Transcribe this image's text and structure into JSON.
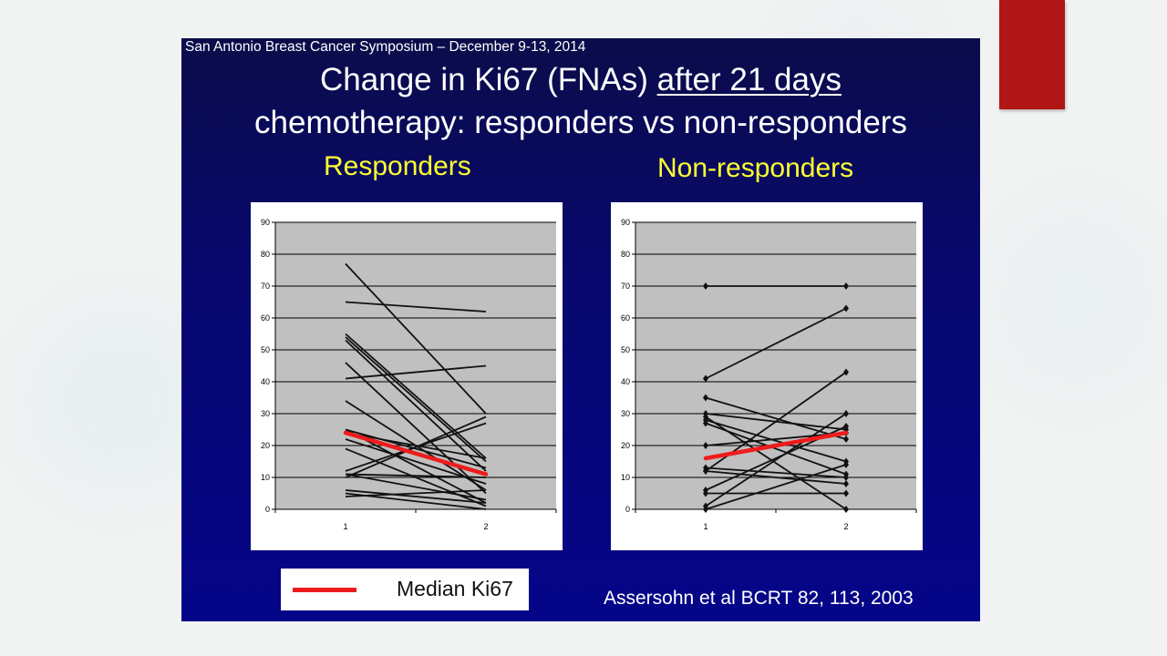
{
  "colors": {
    "accent": "#b01616",
    "slide_bg": "#08087a",
    "title_text": "#ffffff",
    "panel_heading": "#ffff33",
    "plot_area": "#c0c0c0",
    "data_line": "#111111",
    "median_line": "#ee1c1c"
  },
  "slide": {
    "header": "San Antonio Breast Cancer Symposium – December 9-13, 2014",
    "title_line1_prefix": "Change in Ki67 (FNAs) ",
    "title_line1_underlined": "after 21 days",
    "title_line2": "chemotherapy: responders vs non-responders",
    "legend_label": "Median Ki67",
    "citation": "Assersohn et al BCRT 82, 113, 2003"
  },
  "chart_data": [
    {
      "type": "line",
      "panel_title": "Responders",
      "xlabel": "",
      "ylabel": "",
      "categories": [
        "1",
        "2"
      ],
      "ylim": [
        0,
        90
      ],
      "yticks": [
        0,
        10,
        20,
        30,
        40,
        50,
        60,
        70,
        80,
        90
      ],
      "grid": true,
      "markers": false,
      "patients": [
        [
          77,
          30
        ],
        [
          65,
          62
        ],
        [
          55,
          16
        ],
        [
          54,
          15
        ],
        [
          53,
          12
        ],
        [
          46,
          5
        ],
        [
          41,
          45
        ],
        [
          34,
          6
        ],
        [
          25,
          13
        ],
        [
          25,
          2
        ],
        [
          24,
          16
        ],
        [
          22,
          8
        ],
        [
          19,
          1
        ],
        [
          12,
          27
        ],
        [
          11,
          10
        ],
        [
          11,
          3
        ],
        [
          10,
          29
        ],
        [
          6,
          2
        ],
        [
          5,
          0
        ],
        [
          4,
          6
        ]
      ],
      "median": [
        24,
        11
      ]
    },
    {
      "type": "line",
      "panel_title": "Non-responders",
      "xlabel": "",
      "ylabel": "",
      "categories": [
        "1",
        "2"
      ],
      "ylim": [
        0,
        90
      ],
      "yticks": [
        0,
        10,
        20,
        30,
        40,
        50,
        60,
        70,
        80,
        90
      ],
      "grid": true,
      "markers": true,
      "patients": [
        [
          70,
          70
        ],
        [
          41,
          63
        ],
        [
          35,
          22
        ],
        [
          30,
          25
        ],
        [
          29,
          0
        ],
        [
          28,
          15
        ],
        [
          27,
          11
        ],
        [
          20,
          24
        ],
        [
          13,
          10
        ],
        [
          12,
          43
        ],
        [
          12,
          8
        ],
        [
          6,
          26
        ],
        [
          5,
          5
        ],
        [
          1,
          30
        ],
        [
          0,
          14
        ]
      ],
      "median": [
        16,
        24
      ]
    }
  ]
}
